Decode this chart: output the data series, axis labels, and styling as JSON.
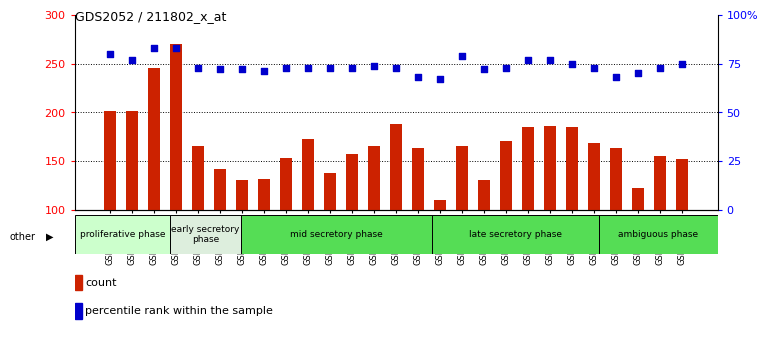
{
  "title": "GDS2052 / 211802_x_at",
  "samples": [
    "GSM109814",
    "GSM109815",
    "GSM109816",
    "GSM109817",
    "GSM109820",
    "GSM109821",
    "GSM109822",
    "GSM109824",
    "GSM109825",
    "GSM109826",
    "GSM109827",
    "GSM109828",
    "GSM109829",
    "GSM109830",
    "GSM109831",
    "GSM109834",
    "GSM109835",
    "GSM109836",
    "GSM109837",
    "GSM109838",
    "GSM109839",
    "GSM109818",
    "GSM109819",
    "GSM109823",
    "GSM109832",
    "GSM109833",
    "GSM109840"
  ],
  "counts": [
    201,
    201,
    245,
    270,
    165,
    142,
    130,
    131,
    153,
    173,
    138,
    157,
    165,
    188,
    163,
    110,
    165,
    130,
    170,
    185,
    186,
    185,
    168,
    163,
    122,
    155,
    152
  ],
  "percentiles": [
    80,
    77,
    83,
    83,
    73,
    72,
    72,
    71,
    73,
    73,
    73,
    73,
    74,
    73,
    68,
    67,
    79,
    72,
    73,
    77,
    77,
    75,
    73,
    68,
    70,
    73,
    75
  ],
  "phases": [
    {
      "label": "proliferative phase",
      "start": 0,
      "end": 4,
      "color": "#ccffcc"
    },
    {
      "label": "early secretory\nphase",
      "start": 4,
      "end": 7,
      "color": "#ddeedd"
    },
    {
      "label": "mid secretory phase",
      "start": 7,
      "end": 15,
      "color": "#55dd55"
    },
    {
      "label": "late secretory phase",
      "start": 15,
      "end": 22,
      "color": "#55dd55"
    },
    {
      "label": "ambiguous phase",
      "start": 22,
      "end": 27,
      "color": "#55dd55"
    }
  ],
  "ylim_left": [
    100,
    300
  ],
  "ylim_right": [
    0,
    100
  ],
  "yticks_left": [
    100,
    150,
    200,
    250,
    300
  ],
  "yticks_right": [
    0,
    25,
    50,
    75,
    100
  ],
  "ytick_labels_right": [
    "0",
    "25",
    "50",
    "75",
    "100%"
  ],
  "bar_color": "#cc2200",
  "scatter_color": "#0000cc",
  "bg_color": "#ffffff"
}
